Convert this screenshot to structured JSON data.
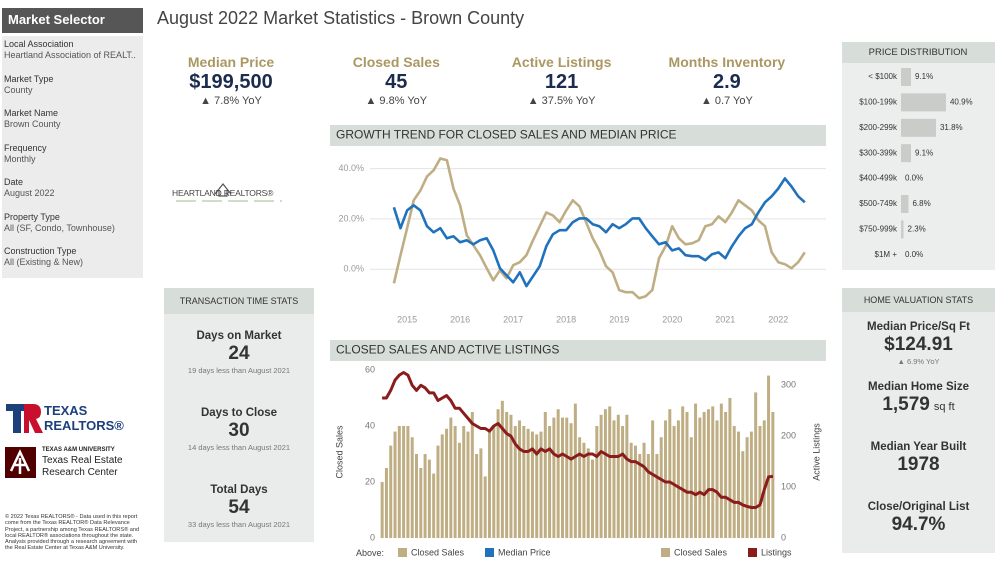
{
  "sidebar": {
    "title": "Market Selector",
    "fields": [
      {
        "label": "Local Association",
        "value": "Heartland Association of REALT.."
      },
      {
        "label": "Market Type",
        "value": "County"
      },
      {
        "label": "Market Name",
        "value": "Brown County"
      },
      {
        "label": "Frequency",
        "value": "Monthly"
      },
      {
        "label": "Date",
        "value": "August 2022"
      },
      {
        "label": "Property Type",
        "value": "All (SF, Condo, Townhouse)"
      },
      {
        "label": "Construction Type",
        "value": "All (Existing & New)"
      }
    ]
  },
  "title": "August 2022 Market Statistics - Brown County",
  "kpis": [
    {
      "label": "Median Price",
      "value": "$199,500",
      "change": "▲ 7.8% YoY"
    },
    {
      "label": "Closed Sales",
      "value": "45",
      "change": "▲ 9.8% YoY"
    },
    {
      "label": "Active Listings",
      "value": "121",
      "change": "▲ 37.5% YoY"
    },
    {
      "label": "Months Inventory",
      "value": "2.9",
      "change": "▲ 0.7 YoY"
    }
  ],
  "logos": {
    "heartland": "HEARTLAND REALTORS®",
    "texas_realtors_top": "TEXAS",
    "texas_realtors_bottom": "REALTORS®",
    "tamu_university": "TEXAS A&M UNIVERSITY",
    "tamu_center_1": "Texas Real Estate",
    "tamu_center_2": "Research Center"
  },
  "footnote": "© 2022 Texas REALTORS® - Data used in this report come from the Texas REALTOR® Data Relevance Project, a partnership among Texas REALTORS® and local REALTOR® associations throughout the state. Analysis provided through a research agreement with the Real Estate Center at Texas A&M University.",
  "transaction_stats": {
    "title": "TRANSACTION TIME STATS",
    "items": [
      {
        "label": "Days on Market",
        "value": "24",
        "note": "19 days less than August 2021"
      },
      {
        "label": "Days to Close",
        "value": "30",
        "note": "14 days less than August 2021"
      },
      {
        "label": "Total Days",
        "value": "54",
        "note": "33 days less than August 2021"
      }
    ]
  },
  "home_valuation": {
    "title": "HOME VALUATION STATS",
    "items": [
      {
        "label": "Median Price/Sq Ft",
        "value": "$124.91",
        "note": "▲ 6.9% YoY"
      },
      {
        "label": "Median Home Size",
        "value": "1,579",
        "unit": "sq ft"
      },
      {
        "label": "Median Year Built",
        "value": "1978"
      },
      {
        "label": "Close/Original List",
        "value": "94.7%"
      }
    ]
  },
  "legend_label": "Above:",
  "chart_data": [
    {
      "type": "line",
      "title": "GROWTH TREND FOR CLOSED SALES AND MEDIAN PRICE",
      "x": [
        2014.75,
        2014.875,
        2015,
        2015.125,
        2015.25,
        2015.375,
        2015.5,
        2015.625,
        2015.75,
        2015.875,
        2016,
        2016.125,
        2016.25,
        2016.375,
        2016.5,
        2016.625,
        2016.75,
        2016.875,
        2017,
        2017.125,
        2017.25,
        2017.375,
        2017.5,
        2017.625,
        2017.75,
        2017.875,
        2018,
        2018.125,
        2018.25,
        2018.375,
        2018.5,
        2018.625,
        2018.75,
        2018.875,
        2019,
        2019.125,
        2019.25,
        2019.375,
        2019.5,
        2019.625,
        2019.75,
        2019.875,
        2020,
        2020.125,
        2020.25,
        2020.375,
        2020.5,
        2020.625,
        2020.75,
        2020.875,
        2021,
        2021.125,
        2021.25,
        2021.375,
        2021.5,
        2021.625,
        2021.75,
        2021.875,
        2022,
        2022.125,
        2022.25,
        2022.375,
        2022.5
      ],
      "xlim": [
        2014.3,
        2022.9
      ],
      "xticks": [
        2015,
        2016,
        2017,
        2018,
        2019,
        2020,
        2021,
        2022
      ],
      "ylim": [
        -15,
        45
      ],
      "yticks": [
        {
          "value": 0,
          "label": "0.0%"
        },
        {
          "value": 20,
          "label": "20.0%"
        },
        {
          "value": 40,
          "label": "40.0%"
        }
      ],
      "grid": true,
      "series": [
        {
          "name": "Closed Sales",
          "color": "#bfae84",
          "values": [
            -5.6,
            5.6,
            16.3,
            27.4,
            31.3,
            36.9,
            39.3,
            44,
            43.3,
            32,
            25.4,
            13.5,
            9.5,
            5.6,
            0.4,
            -4.4,
            -0.4,
            -3.6,
            1.6,
            2.8,
            5.6,
            11.5,
            17.1,
            22.6,
            21.4,
            18.7,
            23.4,
            27.4,
            25,
            18.7,
            12.3,
            7.5,
            1.2,
            -1.2,
            -8.3,
            -9.1,
            -9.1,
            -11.5,
            -10.7,
            -8.3,
            4.4,
            9.1,
            17.1,
            12.3,
            9.9,
            10.3,
            11.5,
            17.1,
            17.9,
            21,
            18.7,
            22.6,
            27.4,
            25.4,
            23.4,
            19.4,
            17.1,
            6.7,
            2.8,
            2,
            0.4,
            2.8,
            6.7
          ]
        },
        {
          "name": "Median Price",
          "color": "#1f72bb",
          "values": [
            24.6,
            16.3,
            23.4,
            25.4,
            23.4,
            17.1,
            14.7,
            16.3,
            12.3,
            13.1,
            10.7,
            11.5,
            9.9,
            11.5,
            12.3,
            7.5,
            0.4,
            -2.4,
            -5.2,
            -1.2,
            -6.7,
            -2.8,
            1.2,
            9.1,
            13.9,
            15.5,
            15.5,
            18.7,
            20.2,
            20.2,
            17.9,
            17.1,
            14.7,
            17.9,
            16.3,
            17.9,
            20.2,
            20.2,
            16.3,
            13.1,
            9.9,
            10.7,
            7.5,
            8.3,
            5.6,
            5.2,
            5.2,
            3.6,
            6,
            6.7,
            4.4,
            9.1,
            13.1,
            16.3,
            17.9,
            22.6,
            26.6,
            29,
            32.1,
            36.1,
            32.9,
            29,
            26.6
          ]
        }
      ]
    },
    {
      "type": "bar-line",
      "title": "CLOSED SALES AND ACTIVE LISTINGS",
      "ylabel": "Closed Sales",
      "y2label": "Active Listings",
      "ylim": [
        0,
        60
      ],
      "yticks": [
        0,
        20,
        40,
        60
      ],
      "y2lim": [
        0,
        330
      ],
      "y2ticks": [
        0,
        100,
        200,
        300
      ],
      "series": [
        {
          "name": "Closed Sales",
          "type": "bar",
          "color": "#bfae84",
          "values": [
            20,
            25,
            33,
            38,
            40,
            40,
            40,
            36,
            30,
            25,
            30,
            28,
            23,
            33,
            37,
            39,
            43,
            40,
            34,
            40,
            38,
            45,
            30,
            32,
            22,
            38,
            40,
            46,
            49,
            45,
            44,
            40,
            42,
            40,
            39,
            38,
            37,
            38,
            45,
            40,
            43,
            46,
            43,
            43,
            41,
            48,
            36,
            34,
            32,
            28,
            40,
            44,
            46,
            47,
            42,
            44,
            40,
            44,
            34,
            33,
            30,
            34,
            30,
            42,
            30,
            36,
            42,
            46,
            40,
            42,
            47,
            45,
            36,
            48,
            43,
            45,
            46,
            47,
            42,
            48,
            45,
            50,
            40,
            38,
            31,
            36,
            38,
            52,
            40,
            42,
            58,
            45
          ]
        },
        {
          "name": "Listings",
          "type": "line",
          "axis": "y2",
          "color": "#8b1c1c",
          "values": [
            275,
            275,
            290,
            310,
            320,
            325,
            320,
            300,
            290,
            300,
            295,
            285,
            285,
            270,
            275,
            280,
            270,
            255,
            255,
            245,
            235,
            225,
            220,
            215,
            215,
            210,
            220,
            225,
            215,
            205,
            200,
            185,
            175,
            170,
            170,
            175,
            165,
            175,
            170,
            175,
            165,
            160,
            165,
            160,
            155,
            160,
            165,
            160,
            165,
            165,
            160,
            170,
            165,
            160,
            160,
            160,
            165,
            155,
            150,
            150,
            145,
            140,
            130,
            125,
            120,
            115,
            110,
            110,
            105,
            100,
            95,
            90,
            90,
            85,
            90,
            85,
            95,
            95,
            90,
            80,
            80,
            75,
            70,
            70,
            65,
            62,
            60,
            60,
            65,
            95,
            120,
            121
          ]
        }
      ]
    },
    {
      "type": "hbar",
      "title": "PRICE DISTRIBUTION",
      "categories": [
        "< $100k",
        "$100-199k",
        "$200-299k",
        "$300-399k",
        "$400-499k",
        "$500-749k",
        "$750-999k",
        "$1M +"
      ],
      "values": [
        9.1,
        40.9,
        31.8,
        9.1,
        0,
        6.8,
        2.3,
        0
      ],
      "value_labels": [
        "9.1%",
        "40.9%",
        "31.8%",
        "9.1%",
        "0.0%",
        "6.8%",
        "2.3%",
        "0.0%"
      ],
      "color": "#c9ccc9"
    }
  ]
}
